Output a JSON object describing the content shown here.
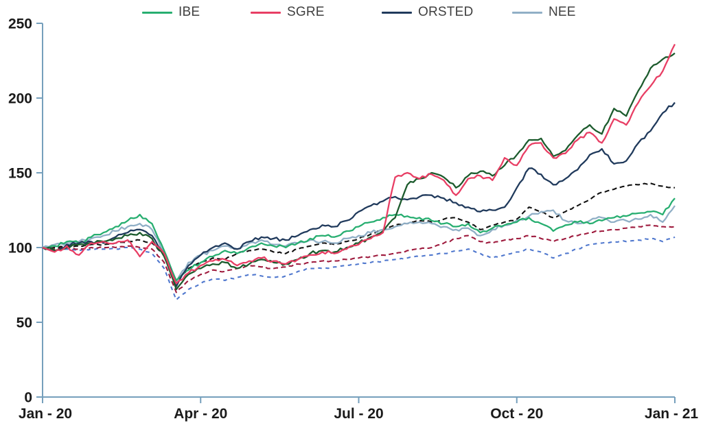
{
  "legend": {
    "items": [
      {
        "label": "IBE",
        "color": "#27ae70"
      },
      {
        "label": "SGRE",
        "color": "#e83e64"
      },
      {
        "label": "ORSTED",
        "color": "#203a5c"
      },
      {
        "label": "NEE",
        "color": "#90afc6"
      }
    ]
  },
  "axes": {
    "axis_color": "#759fbc",
    "label_color": "#1a1a1a"
  },
  "chart_data": {
    "type": "line",
    "title": "",
    "subtitle": "",
    "ylim": [
      0,
      250
    ],
    "y_ticks": [
      0,
      50,
      100,
      150,
      200,
      250
    ],
    "y_tick_labels": [
      "0",
      "50",
      "100",
      "150",
      "200",
      "250"
    ],
    "x_tick_labels": [
      "Jan - 20",
      "Apr - 20",
      "Jul - 20",
      "Oct - 20",
      "Jan - 21"
    ],
    "index_base": 100,
    "grid": false,
    "legend_position": "top",
    "series": [
      {
        "name": "benchmark-blue-dashed",
        "label": "",
        "color": "#5078ce",
        "style": "dashed",
        "in_legend": false,
        "values": [
          100,
          98,
          99,
          98,
          99,
          99,
          99,
          100,
          99,
          96,
          86,
          65,
          72,
          76,
          79,
          78,
          80,
          82,
          81,
          80,
          81,
          84,
          86,
          86,
          87,
          88,
          89,
          90,
          91,
          92,
          93,
          94,
          95,
          96,
          98,
          99,
          96,
          93,
          95,
          97,
          99,
          97,
          93,
          96,
          99,
          102,
          103,
          104,
          104,
          105,
          106,
          104,
          107
        ]
      },
      {
        "name": "benchmark-dark-red-dashed",
        "label": "",
        "color": "#9e1a3d",
        "style": "dashed",
        "in_legend": false,
        "values": [
          100,
          99,
          100,
          99,
          100,
          100,
          100,
          101,
          100,
          99,
          90,
          70,
          78,
          82,
          85,
          84,
          86,
          88,
          87,
          86,
          87,
          89,
          90,
          91,
          91,
          92,
          93,
          94,
          95,
          96,
          98,
          99,
          100,
          103,
          106,
          108,
          104,
          103,
          105,
          106,
          108,
          106,
          104,
          106,
          108,
          110,
          111,
          112,
          113,
          114,
          115,
          114,
          114
        ]
      },
      {
        "name": "benchmark-black-dashed",
        "label": "",
        "color": "#111111",
        "style": "dashed",
        "in_legend": false,
        "values": [
          100,
          100,
          101,
          101,
          102,
          102,
          103,
          104,
          105,
          103,
          95,
          78,
          86,
          90,
          93,
          92,
          96,
          98,
          99,
          97,
          96,
          99,
          101,
          103,
          102,
          104,
          106,
          109,
          112,
          115,
          116,
          118,
          117,
          119,
          120,
          117,
          112,
          115,
          117,
          119,
          127,
          124,
          120,
          124,
          128,
          132,
          137,
          139,
          141,
          142,
          143,
          141,
          140
        ]
      },
      {
        "name": "NEE",
        "label": "NEE",
        "color": "#90afc6",
        "style": "solid",
        "in_legend": true,
        "values": [
          100,
          102,
          103,
          104,
          106,
          108,
          111,
          114,
          116,
          112,
          97,
          77,
          90,
          95,
          98,
          101,
          99,
          103,
          105,
          102,
          101,
          103,
          105,
          104,
          103,
          106,
          108,
          110,
          112,
          114,
          116,
          117,
          116,
          114,
          112,
          113,
          108,
          112,
          115,
          118,
          121,
          124,
          125,
          118,
          116,
          118,
          120,
          117,
          118,
          119,
          122,
          117,
          128
        ]
      },
      {
        "name": "IBE",
        "label": "IBE",
        "color": "#27ae70",
        "style": "solid",
        "in_legend": true,
        "values": [
          100,
          101,
          104,
          103,
          107,
          110,
          114,
          118,
          122,
          116,
          98,
          78,
          85,
          90,
          94,
          98,
          96,
          100,
          103,
          101,
          100,
          103,
          106,
          108,
          107,
          111,
          114,
          117,
          120,
          122,
          121,
          120,
          118,
          116,
          114,
          116,
          110,
          113,
          115,
          117,
          120,
          116,
          111,
          115,
          117,
          116,
          118,
          120,
          121,
          123,
          124,
          122,
          133
        ]
      },
      {
        "name": "ORSTED",
        "label": "ORSTED",
        "color": "#203a5c",
        "style": "solid",
        "in_legend": true,
        "values": [
          100,
          98,
          102,
          103,
          104,
          103,
          107,
          110,
          112,
          108,
          96,
          74,
          88,
          95,
          100,
          103,
          99,
          104,
          107,
          106,
          105,
          108,
          112,
          115,
          114,
          118,
          124,
          128,
          131,
          134,
          132,
          134,
          135,
          133,
          130,
          127,
          124,
          125,
          127,
          140,
          153,
          149,
          142,
          146,
          152,
          162,
          166,
          156,
          158,
          170,
          178,
          190,
          197
        ]
      },
      {
        "name": "unlabeled-dark-green",
        "label": "",
        "color": "#1c5b2d",
        "style": "solid",
        "in_legend": false,
        "values": [
          100,
          98,
          100,
          102,
          103,
          104,
          106,
          108,
          110,
          106,
          94,
          72,
          82,
          86,
          89,
          90,
          86,
          89,
          92,
          90,
          89,
          92,
          96,
          98,
          97,
          100,
          103,
          107,
          111,
          120,
          142,
          146,
          150,
          147,
          140,
          148,
          151,
          148,
          155,
          162,
          172,
          173,
          161,
          165,
          175,
          182,
          176,
          193,
          188,
          205,
          220,
          226,
          230
        ]
      },
      {
        "name": "SGRE",
        "label": "SGRE",
        "color": "#e83e64",
        "style": "solid",
        "in_legend": true,
        "values": [
          100,
          97,
          101,
          95,
          103,
          104,
          103,
          105,
          94,
          104,
          96,
          76,
          83,
          88,
          91,
          92,
          88,
          91,
          93,
          91,
          89,
          92,
          95,
          97,
          96,
          99,
          102,
          106,
          110,
          147,
          150,
          146,
          149,
          145,
          135,
          146,
          148,
          145,
          160,
          155,
          168,
          170,
          160,
          163,
          172,
          177,
          170,
          186,
          182,
          197,
          208,
          218,
          236
        ]
      }
    ]
  }
}
